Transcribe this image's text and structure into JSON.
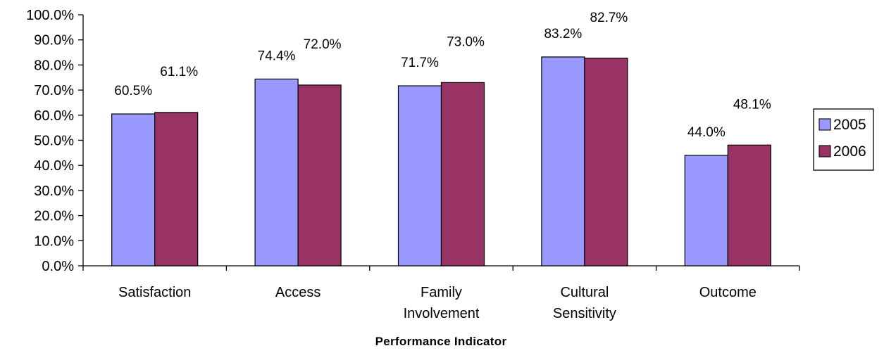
{
  "chart_data": {
    "type": "bar",
    "title": "",
    "xlabel": "Performance Indicator",
    "ylabel": "",
    "ylim": [
      0,
      100
    ],
    "ytick_step": 10,
    "y_tick_format": "percent_1dp",
    "categories": [
      [
        "Satisfaction"
      ],
      [
        "Access"
      ],
      [
        "Family",
        "Involvement"
      ],
      [
        "Cultural",
        "Sensitivity"
      ],
      [
        "Outcome"
      ]
    ],
    "series": [
      {
        "name": "2005",
        "color": "#9999ff",
        "values": [
          60.5,
          74.4,
          71.7,
          83.2,
          44.0
        ]
      },
      {
        "name": "2006",
        "color": "#993366",
        "values": [
          61.1,
          72.0,
          73.0,
          82.7,
          48.1
        ]
      }
    ],
    "data_labels": true,
    "grid": false,
    "legend_position": "right"
  }
}
